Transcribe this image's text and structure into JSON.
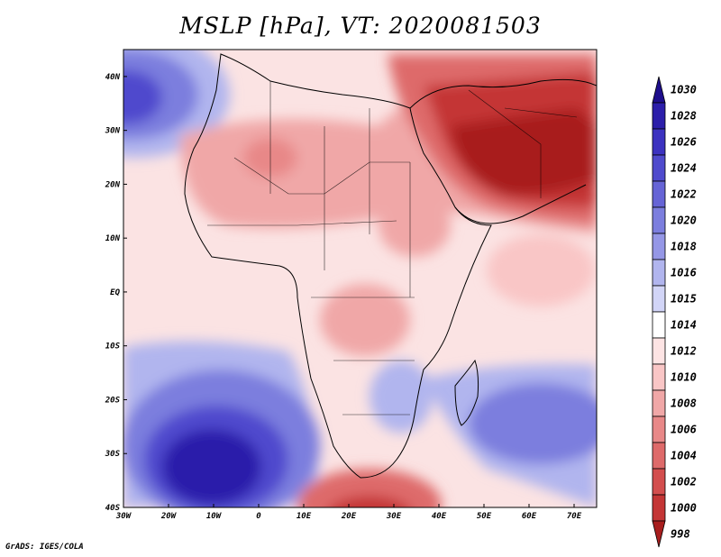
{
  "title": "MSLP [hPa], VT: 2020081503",
  "footer": "GrADS: IGES/COLA",
  "map": {
    "lon_range": [
      -30,
      75
    ],
    "lat_range": [
      -40,
      45
    ],
    "lon_ticks": [
      {
        "value": -30,
        "label": "30W"
      },
      {
        "value": -20,
        "label": "20W"
      },
      {
        "value": -10,
        "label": "10W"
      },
      {
        "value": 0,
        "label": "0"
      },
      {
        "value": 10,
        "label": "10E"
      },
      {
        "value": 20,
        "label": "20E"
      },
      {
        "value": 30,
        "label": "30E"
      },
      {
        "value": 40,
        "label": "40E"
      },
      {
        "value": 50,
        "label": "50E"
      },
      {
        "value": 60,
        "label": "60E"
      },
      {
        "value": 70,
        "label": "70E"
      }
    ],
    "lat_ticks": [
      {
        "value": 40,
        "label": "40N"
      },
      {
        "value": 30,
        "label": "30N"
      },
      {
        "value": 20,
        "label": "20N"
      },
      {
        "value": 10,
        "label": "10N"
      },
      {
        "value": 0,
        "label": "EQ"
      },
      {
        "value": -10,
        "label": "10S"
      },
      {
        "value": -20,
        "label": "20S"
      },
      {
        "value": -30,
        "label": "30S"
      },
      {
        "value": -40,
        "label": "40S"
      }
    ]
  },
  "colorbar": {
    "labels": [
      "1030",
      "1028",
      "1026",
      "1024",
      "1022",
      "1020",
      "1018",
      "1016",
      "1015",
      "1014",
      "1012",
      "1010",
      "1008",
      "1006",
      "1004",
      "1002",
      "1000",
      "998"
    ],
    "colors": [
      "#1e0e8c",
      "#2c1eaa",
      "#3c32c0",
      "#4f4acd",
      "#6664d6",
      "#7c7ede",
      "#9597e6",
      "#b1b5ee",
      "#d2d5f7",
      "#ffffff",
      "#fde4e4",
      "#f9c6c6",
      "#f0a7a7",
      "#e88888",
      "#de6a6a",
      "#d34e4e",
      "#c43636",
      "#a81e1e"
    ]
  }
}
